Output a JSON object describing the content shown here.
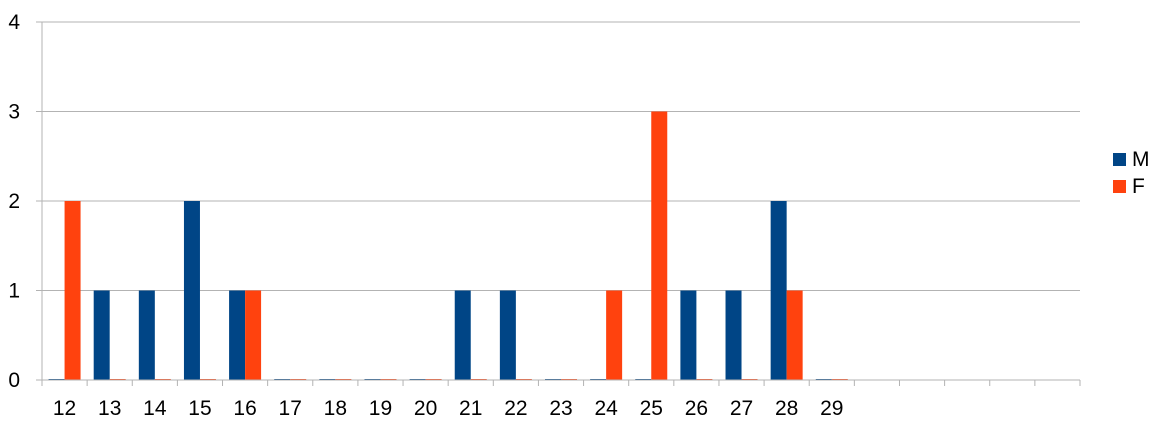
{
  "chart_data": {
    "type": "bar",
    "categories": [
      "12",
      "13",
      "14",
      "15",
      "16",
      "17",
      "18",
      "19",
      "20",
      "21",
      "22",
      "23",
      "24",
      "25",
      "26",
      "27",
      "28",
      "29",
      "",
      "",
      "",
      "",
      ""
    ],
    "series": [
      {
        "name": "M",
        "color": "#004586",
        "values": [
          0,
          1,
          1,
          2,
          1,
          0,
          0,
          0,
          0,
          1,
          1,
          0,
          0,
          0,
          1,
          1,
          2,
          0,
          null,
          null,
          null,
          null,
          null
        ]
      },
      {
        "name": "F",
        "color": "#ff420e",
        "values": [
          2,
          0,
          0,
          0,
          1,
          0,
          0,
          0,
          0,
          0,
          0,
          0,
          1,
          3,
          0,
          0,
          1,
          0,
          null,
          null,
          null,
          null,
          null
        ]
      }
    ],
    "yticks": [
      "0",
      "1",
      "2",
      "3",
      "4"
    ],
    "ylim": [
      0,
      4
    ],
    "grid": true,
    "legend_position": "right",
    "title": "",
    "xlabel": "",
    "ylabel": ""
  }
}
